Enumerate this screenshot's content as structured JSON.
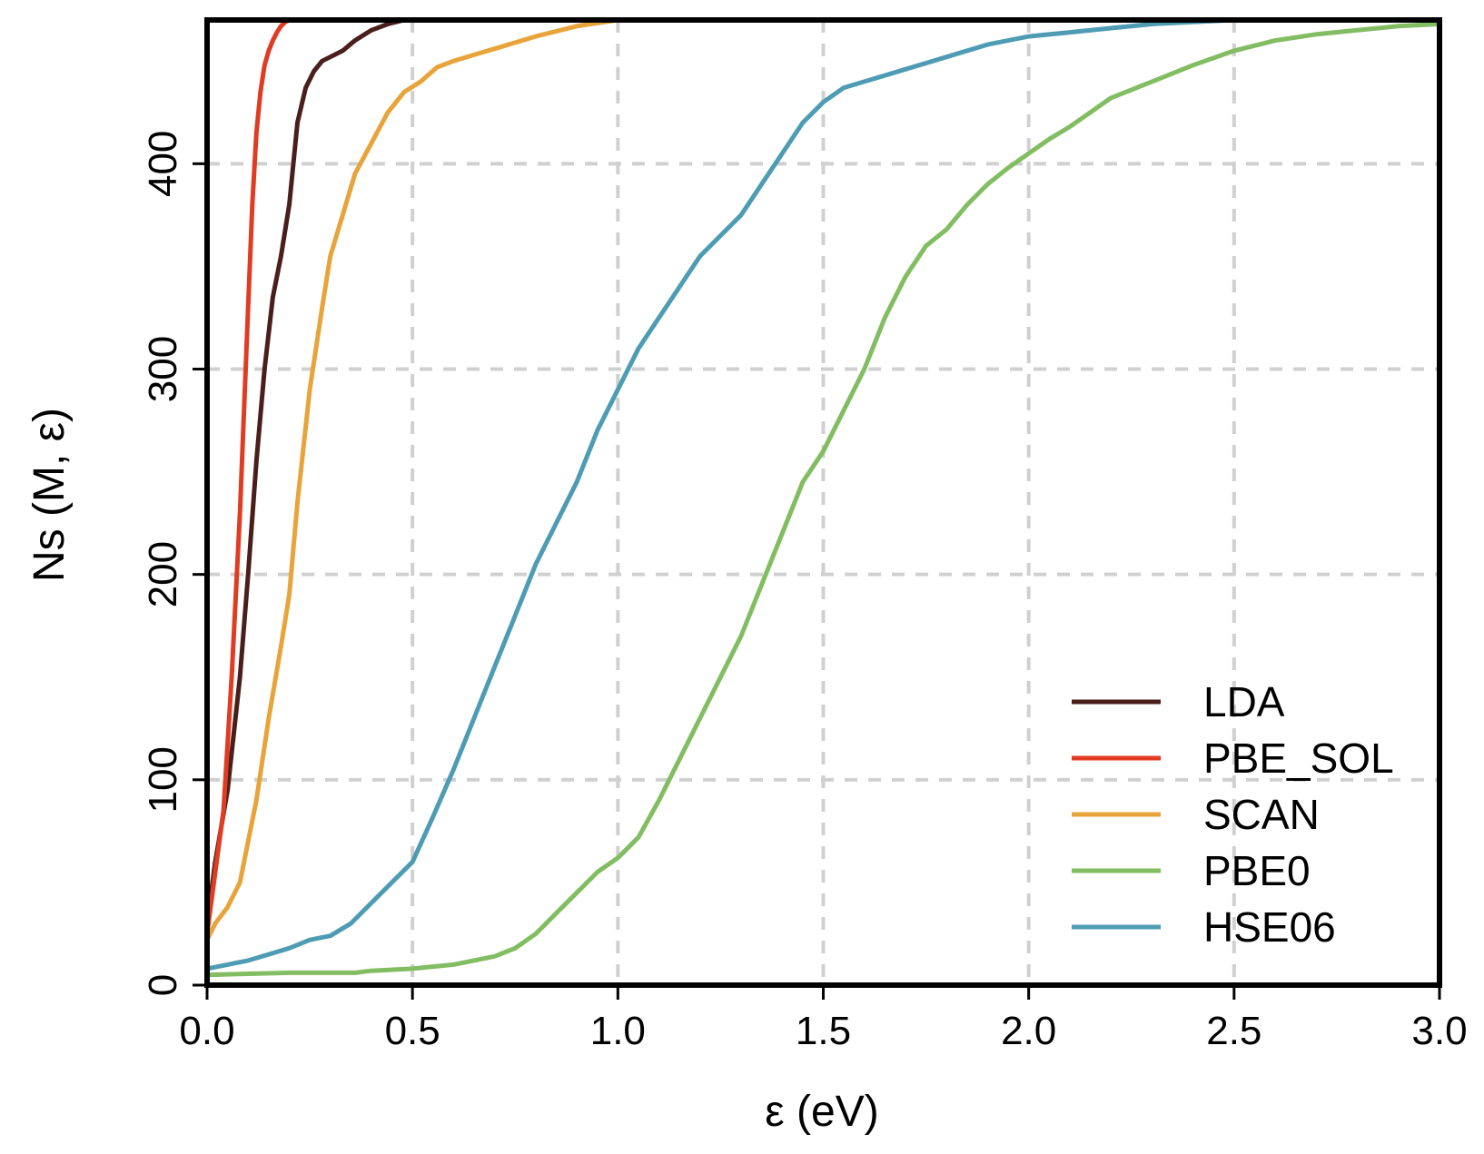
{
  "chart_data": {
    "type": "line",
    "title": "",
    "xlabel": "ε (eV)",
    "ylabel": "Ns (M, ε)",
    "xlim": [
      0,
      3
    ],
    "ylim": [
      0,
      470
    ],
    "x_ticks": [
      "0.0",
      "0.5",
      "1.0",
      "1.5",
      "2.0",
      "2.5",
      "3.0"
    ],
    "y_ticks": [
      "0",
      "100",
      "200",
      "300",
      "400"
    ],
    "grid": true,
    "legend_position": "bottom-right",
    "series": [
      {
        "name": "LDA",
        "color": "#4a1e1a",
        "x": [
          0,
          0.02,
          0.05,
          0.08,
          0.1,
          0.12,
          0.14,
          0.16,
          0.18,
          0.2,
          0.22,
          0.24,
          0.26,
          0.28,
          0.3,
          0.33,
          0.36,
          0.4,
          0.44,
          0.48,
          0.5,
          0.55
        ],
        "y": [
          30,
          60,
          95,
          150,
          200,
          255,
          300,
          335,
          355,
          380,
          420,
          437,
          445,
          450,
          452,
          455,
          460,
          465,
          468,
          470,
          470,
          470
        ]
      },
      {
        "name": "PBE_SOL",
        "color": "#e03c22",
        "x": [
          0,
          0.02,
          0.04,
          0.06,
          0.08,
          0.09,
          0.1,
          0.11,
          0.12,
          0.13,
          0.14,
          0.15,
          0.16,
          0.17,
          0.18,
          0.19,
          0.2,
          0.22,
          0.25
        ],
        "y": [
          25,
          55,
          85,
          150,
          230,
          280,
          330,
          380,
          415,
          435,
          448,
          455,
          460,
          464,
          467,
          469,
          470,
          470,
          470
        ]
      },
      {
        "name": "SCAN",
        "color": "#e8a43a",
        "x": [
          0,
          0.02,
          0.05,
          0.08,
          0.1,
          0.12,
          0.15,
          0.18,
          0.2,
          0.22,
          0.25,
          0.28,
          0.3,
          0.33,
          0.36,
          0.4,
          0.44,
          0.48,
          0.52,
          0.56,
          0.6,
          0.65,
          0.7,
          0.8,
          0.9,
          1.0,
          1.1,
          1.25
        ],
        "y": [
          22,
          30,
          38,
          50,
          70,
          90,
          130,
          165,
          190,
          235,
          290,
          330,
          355,
          375,
          395,
          410,
          425,
          435,
          440,
          447,
          450,
          453,
          456,
          462,
          467,
          470,
          470,
          470
        ]
      },
      {
        "name": "PBE0",
        "color": "#82bd62",
        "x": [
          0,
          0.2,
          0.36,
          0.4,
          0.5,
          0.6,
          0.7,
          0.75,
          0.8,
          0.85,
          0.9,
          0.95,
          1.0,
          1.05,
          1.1,
          1.15,
          1.2,
          1.25,
          1.3,
          1.35,
          1.4,
          1.45,
          1.5,
          1.55,
          1.6,
          1.65,
          1.7,
          1.75,
          1.8,
          1.85,
          1.9,
          1.95,
          2.0,
          2.05,
          2.1,
          2.15,
          2.2,
          2.3,
          2.4,
          2.5,
          2.6,
          2.7,
          2.8,
          2.9,
          3.0
        ],
        "y": [
          5,
          6,
          6,
          7,
          8,
          10,
          14,
          18,
          25,
          35,
          45,
          55,
          62,
          72,
          90,
          110,
          130,
          150,
          170,
          195,
          220,
          245,
          260,
          280,
          300,
          325,
          345,
          360,
          368,
          380,
          390,
          398,
          405,
          412,
          418,
          425,
          432,
          440,
          448,
          455,
          460,
          463,
          465,
          467,
          468
        ]
      },
      {
        "name": "HSE06",
        "color": "#4e9cb4",
        "x": [
          0,
          0.05,
          0.1,
          0.15,
          0.2,
          0.25,
          0.3,
          0.35,
          0.4,
          0.45,
          0.5,
          0.55,
          0.6,
          0.65,
          0.7,
          0.75,
          0.8,
          0.85,
          0.9,
          0.95,
          1.0,
          1.05,
          1.1,
          1.15,
          1.2,
          1.25,
          1.3,
          1.35,
          1.4,
          1.45,
          1.5,
          1.55,
          1.6,
          1.7,
          1.8,
          1.9,
          2.0,
          2.1,
          2.2,
          2.3,
          2.4,
          2.5,
          2.6,
          2.7,
          2.8,
          2.9,
          3.0
        ],
        "y": [
          8,
          10,
          12,
          15,
          18,
          22,
          24,
          30,
          40,
          50,
          60,
          82,
          105,
          130,
          155,
          180,
          205,
          225,
          245,
          270,
          290,
          310,
          325,
          340,
          355,
          365,
          375,
          390,
          405,
          420,
          430,
          437,
          440,
          446,
          452,
          458,
          462,
          464,
          466,
          468,
          469,
          470,
          470,
          470,
          470,
          470,
          470
        ]
      }
    ]
  }
}
